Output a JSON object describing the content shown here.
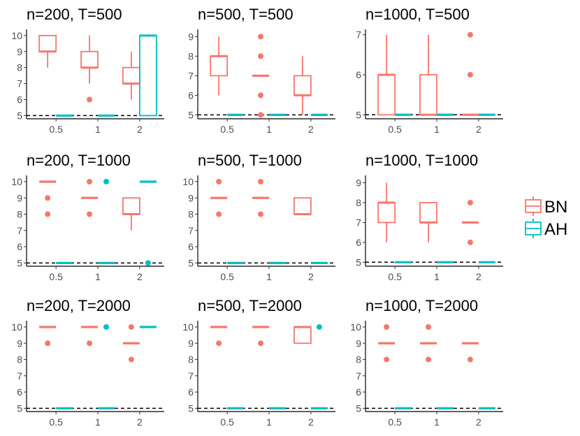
{
  "colors": {
    "BN": "#F8766D",
    "AH": "#00BFC4",
    "axis": "#000000",
    "tick_text": "#4d4d4d",
    "refline": "#000000"
  },
  "legend": {
    "items": [
      {
        "key": "BN",
        "label": "BN"
      },
      {
        "key": "AH",
        "label": "AH"
      }
    ]
  },
  "chart_data": [
    {
      "type": "boxplot",
      "title": "n=200, T=500",
      "categories": [
        "0.5",
        "1",
        "2"
      ],
      "ylim": [
        4.8,
        10.3
      ],
      "yticks": [
        5,
        6,
        7,
        8,
        9,
        10
      ],
      "refline": 5,
      "series": [
        {
          "name": "BN",
          "boxes": [
            {
              "cat": "0.5",
              "q1": 9,
              "median": 9,
              "q3": 10,
              "whisker_low": 8,
              "whisker_high": 10,
              "outliers": []
            },
            {
              "cat": "1",
              "q1": 8,
              "median": 8,
              "q3": 9,
              "whisker_low": 7,
              "whisker_high": 10,
              "outliers": [
                6
              ]
            },
            {
              "cat": "2",
              "q1": 7,
              "median": 7,
              "q3": 8,
              "whisker_low": 6,
              "whisker_high": 9,
              "outliers": []
            }
          ]
        },
        {
          "name": "AH",
          "boxes": [
            {
              "cat": "0.5",
              "q1": 5,
              "median": 5,
              "q3": 5,
              "whisker_low": 5,
              "whisker_high": 5,
              "outliers": []
            },
            {
              "cat": "1",
              "q1": 5,
              "median": 5,
              "q3": 5,
              "whisker_low": 5,
              "whisker_high": 5,
              "outliers": []
            },
            {
              "cat": "2",
              "q1": 5,
              "median": 10,
              "q3": 10,
              "whisker_low": 5,
              "whisker_high": 10,
              "outliers": []
            }
          ]
        }
      ]
    },
    {
      "type": "boxplot",
      "title": "n=500, T=500",
      "categories": [
        "0.5",
        "1",
        "2"
      ],
      "ylim": [
        4.8,
        9.3
      ],
      "yticks": [
        5,
        6,
        7,
        8,
        9
      ],
      "refline": 5,
      "series": [
        {
          "name": "BN",
          "boxes": [
            {
              "cat": "0.5",
              "q1": 7,
              "median": 8,
              "q3": 8,
              "whisker_low": 6,
              "whisker_high": 9,
              "outliers": []
            },
            {
              "cat": "1",
              "q1": 7,
              "median": 7,
              "q3": 7,
              "whisker_low": 7,
              "whisker_high": 7,
              "outliers": [
                5,
                6,
                8,
                9
              ]
            },
            {
              "cat": "2",
              "q1": 6,
              "median": 6,
              "q3": 7,
              "whisker_low": 5,
              "whisker_high": 8,
              "outliers": []
            }
          ]
        },
        {
          "name": "AH",
          "boxes": [
            {
              "cat": "0.5",
              "q1": 5,
              "median": 5,
              "q3": 5,
              "whisker_low": 5,
              "whisker_high": 5,
              "outliers": []
            },
            {
              "cat": "1",
              "q1": 5,
              "median": 5,
              "q3": 5,
              "whisker_low": 5,
              "whisker_high": 5,
              "outliers": []
            },
            {
              "cat": "2",
              "q1": 5,
              "median": 5,
              "q3": 5,
              "whisker_low": 5,
              "whisker_high": 5,
              "outliers": []
            }
          ]
        }
      ]
    },
    {
      "type": "boxplot",
      "title": "n=1000, T=500",
      "categories": [
        "0.5",
        "1",
        "2"
      ],
      "ylim": [
        4.9,
        7.1
      ],
      "yticks": [
        5,
        6,
        7
      ],
      "refline": 5,
      "series": [
        {
          "name": "BN",
          "boxes": [
            {
              "cat": "0.5",
              "q1": 5,
              "median": 6,
              "q3": 6,
              "whisker_low": 5,
              "whisker_high": 7,
              "outliers": []
            },
            {
              "cat": "1",
              "q1": 5,
              "median": 5,
              "q3": 6,
              "whisker_low": 5,
              "whisker_high": 7,
              "outliers": []
            },
            {
              "cat": "2",
              "q1": 5,
              "median": 5,
              "q3": 5,
              "whisker_low": 5,
              "whisker_high": 5,
              "outliers": [
                6,
                7
              ]
            }
          ]
        },
        {
          "name": "AH",
          "boxes": [
            {
              "cat": "0.5",
              "q1": 5,
              "median": 5,
              "q3": 5,
              "whisker_low": 5,
              "whisker_high": 5,
              "outliers": []
            },
            {
              "cat": "1",
              "q1": 5,
              "median": 5,
              "q3": 5,
              "whisker_low": 5,
              "whisker_high": 5,
              "outliers": []
            },
            {
              "cat": "2",
              "q1": 5,
              "median": 5,
              "q3": 5,
              "whisker_low": 5,
              "whisker_high": 5,
              "outliers": []
            }
          ]
        }
      ]
    },
    {
      "type": "boxplot",
      "title": "n=200, T=1000",
      "categories": [
        "0.5",
        "1",
        "2"
      ],
      "ylim": [
        4.8,
        10.3
      ],
      "yticks": [
        5,
        6,
        7,
        8,
        9,
        10
      ],
      "refline": 5,
      "series": [
        {
          "name": "BN",
          "boxes": [
            {
              "cat": "0.5",
              "q1": 10,
              "median": 10,
              "q3": 10,
              "whisker_low": 10,
              "whisker_high": 10,
              "outliers": [
                8,
                9
              ]
            },
            {
              "cat": "1",
              "q1": 9,
              "median": 9,
              "q3": 9,
              "whisker_low": 9,
              "whisker_high": 9,
              "outliers": [
                8,
                10
              ]
            },
            {
              "cat": "2",
              "q1": 8,
              "median": 8,
              "q3": 9,
              "whisker_low": 7,
              "whisker_high": 9,
              "outliers": []
            }
          ]
        },
        {
          "name": "AH",
          "boxes": [
            {
              "cat": "0.5",
              "q1": 5,
              "median": 5,
              "q3": 5,
              "whisker_low": 5,
              "whisker_high": 5,
              "outliers": []
            },
            {
              "cat": "1",
              "q1": 5,
              "median": 5,
              "q3": 5,
              "whisker_low": 5,
              "whisker_high": 5,
              "outliers": [
                10
              ]
            },
            {
              "cat": "2",
              "q1": 10,
              "median": 10,
              "q3": 10,
              "whisker_low": 10,
              "whisker_high": 10,
              "outliers": [
                5
              ]
            }
          ]
        }
      ]
    },
    {
      "type": "boxplot",
      "title": "n=500, T=1000",
      "categories": [
        "0.5",
        "1",
        "2"
      ],
      "ylim": [
        4.8,
        10.3
      ],
      "yticks": [
        5,
        6,
        7,
        8,
        9,
        10
      ],
      "refline": 5,
      "series": [
        {
          "name": "BN",
          "boxes": [
            {
              "cat": "0.5",
              "q1": 9,
              "median": 9,
              "q3": 9,
              "whisker_low": 9,
              "whisker_high": 9,
              "outliers": [
                8,
                10
              ]
            },
            {
              "cat": "1",
              "q1": 9,
              "median": 9,
              "q3": 9,
              "whisker_low": 9,
              "whisker_high": 9,
              "outliers": [
                8,
                10
              ]
            },
            {
              "cat": "2",
              "q1": 8,
              "median": 8,
              "q3": 9,
              "whisker_low": 8,
              "whisker_high": 9,
              "outliers": []
            }
          ]
        },
        {
          "name": "AH",
          "boxes": [
            {
              "cat": "0.5",
              "q1": 5,
              "median": 5,
              "q3": 5,
              "whisker_low": 5,
              "whisker_high": 5,
              "outliers": []
            },
            {
              "cat": "1",
              "q1": 5,
              "median": 5,
              "q3": 5,
              "whisker_low": 5,
              "whisker_high": 5,
              "outliers": []
            },
            {
              "cat": "2",
              "q1": 5,
              "median": 5,
              "q3": 5,
              "whisker_low": 5,
              "whisker_high": 5,
              "outliers": []
            }
          ]
        }
      ]
    },
    {
      "type": "boxplot",
      "title": "n=1000, T=1000",
      "categories": [
        "0.5",
        "1",
        "2"
      ],
      "ylim": [
        4.8,
        9.3
      ],
      "yticks": [
        5,
        6,
        7,
        8,
        9
      ],
      "refline": 5,
      "series": [
        {
          "name": "BN",
          "boxes": [
            {
              "cat": "0.5",
              "q1": 7,
              "median": 8,
              "q3": 8,
              "whisker_low": 6,
              "whisker_high": 9,
              "outliers": []
            },
            {
              "cat": "1",
              "q1": 7,
              "median": 7,
              "q3": 8,
              "whisker_low": 6,
              "whisker_high": 8,
              "outliers": []
            },
            {
              "cat": "2",
              "q1": 7,
              "median": 7,
              "q3": 7,
              "whisker_low": 7,
              "whisker_high": 7,
              "outliers": [
                6,
                8
              ]
            }
          ]
        },
        {
          "name": "AH",
          "boxes": [
            {
              "cat": "0.5",
              "q1": 5,
              "median": 5,
              "q3": 5,
              "whisker_low": 5,
              "whisker_high": 5,
              "outliers": []
            },
            {
              "cat": "1",
              "q1": 5,
              "median": 5,
              "q3": 5,
              "whisker_low": 5,
              "whisker_high": 5,
              "outliers": []
            },
            {
              "cat": "2",
              "q1": 5,
              "median": 5,
              "q3": 5,
              "whisker_low": 5,
              "whisker_high": 5,
              "outliers": []
            }
          ]
        }
      ]
    },
    {
      "type": "boxplot",
      "title": "n=200, T=2000",
      "categories": [
        "0.5",
        "1",
        "2"
      ],
      "ylim": [
        4.8,
        10.3
      ],
      "yticks": [
        5,
        6,
        7,
        8,
        9,
        10
      ],
      "refline": 5,
      "series": [
        {
          "name": "BN",
          "boxes": [
            {
              "cat": "0.5",
              "q1": 10,
              "median": 10,
              "q3": 10,
              "whisker_low": 10,
              "whisker_high": 10,
              "outliers": [
                9
              ]
            },
            {
              "cat": "1",
              "q1": 10,
              "median": 10,
              "q3": 10,
              "whisker_low": 10,
              "whisker_high": 10,
              "outliers": [
                9
              ]
            },
            {
              "cat": "2",
              "q1": 9,
              "median": 9,
              "q3": 9,
              "whisker_low": 9,
              "whisker_high": 9,
              "outliers": [
                8,
                10
              ]
            }
          ]
        },
        {
          "name": "AH",
          "boxes": [
            {
              "cat": "0.5",
              "q1": 5,
              "median": 5,
              "q3": 5,
              "whisker_low": 5,
              "whisker_high": 5,
              "outliers": []
            },
            {
              "cat": "1",
              "q1": 5,
              "median": 5,
              "q3": 5,
              "whisker_low": 5,
              "whisker_high": 5,
              "outliers": [
                10
              ]
            },
            {
              "cat": "2",
              "q1": 10,
              "median": 10,
              "q3": 10,
              "whisker_low": 10,
              "whisker_high": 10,
              "outliers": []
            }
          ]
        }
      ]
    },
    {
      "type": "boxplot",
      "title": "n=500, T=2000",
      "categories": [
        "0.5",
        "1",
        "2"
      ],
      "ylim": [
        4.8,
        10.3
      ],
      "yticks": [
        5,
        6,
        7,
        8,
        9,
        10
      ],
      "refline": 5,
      "series": [
        {
          "name": "BN",
          "boxes": [
            {
              "cat": "0.5",
              "q1": 10,
              "median": 10,
              "q3": 10,
              "whisker_low": 10,
              "whisker_high": 10,
              "outliers": [
                9
              ]
            },
            {
              "cat": "1",
              "q1": 10,
              "median": 10,
              "q3": 10,
              "whisker_low": 10,
              "whisker_high": 10,
              "outliers": [
                9
              ]
            },
            {
              "cat": "2",
              "q1": 9,
              "median": 10,
              "q3": 10,
              "whisker_low": 9,
              "whisker_high": 10,
              "outliers": []
            }
          ]
        },
        {
          "name": "AH",
          "boxes": [
            {
              "cat": "0.5",
              "q1": 5,
              "median": 5,
              "q3": 5,
              "whisker_low": 5,
              "whisker_high": 5,
              "outliers": []
            },
            {
              "cat": "1",
              "q1": 5,
              "median": 5,
              "q3": 5,
              "whisker_low": 5,
              "whisker_high": 5,
              "outliers": []
            },
            {
              "cat": "2",
              "q1": 5,
              "median": 5,
              "q3": 5,
              "whisker_low": 5,
              "whisker_high": 5,
              "outliers": [
                10
              ]
            }
          ]
        }
      ]
    },
    {
      "type": "boxplot",
      "title": "n=1000, T=2000",
      "categories": [
        "0.5",
        "1",
        "2"
      ],
      "ylim": [
        4.8,
        10.3
      ],
      "yticks": [
        5,
        6,
        7,
        8,
        9,
        10
      ],
      "refline": 5,
      "series": [
        {
          "name": "BN",
          "boxes": [
            {
              "cat": "0.5",
              "q1": 9,
              "median": 9,
              "q3": 9,
              "whisker_low": 9,
              "whisker_high": 9,
              "outliers": [
                8,
                10
              ]
            },
            {
              "cat": "1",
              "q1": 9,
              "median": 9,
              "q3": 9,
              "whisker_low": 9,
              "whisker_high": 9,
              "outliers": [
                8,
                10
              ]
            },
            {
              "cat": "2",
              "q1": 9,
              "median": 9,
              "q3": 9,
              "whisker_low": 9,
              "whisker_high": 9,
              "outliers": [
                8
              ]
            }
          ]
        },
        {
          "name": "AH",
          "boxes": [
            {
              "cat": "0.5",
              "q1": 5,
              "median": 5,
              "q3": 5,
              "whisker_low": 5,
              "whisker_high": 5,
              "outliers": []
            },
            {
              "cat": "1",
              "q1": 5,
              "median": 5,
              "q3": 5,
              "whisker_low": 5,
              "whisker_high": 5,
              "outliers": []
            },
            {
              "cat": "2",
              "q1": 5,
              "median": 5,
              "q3": 5,
              "whisker_low": 5,
              "whisker_high": 5,
              "outliers": []
            }
          ]
        }
      ]
    }
  ]
}
